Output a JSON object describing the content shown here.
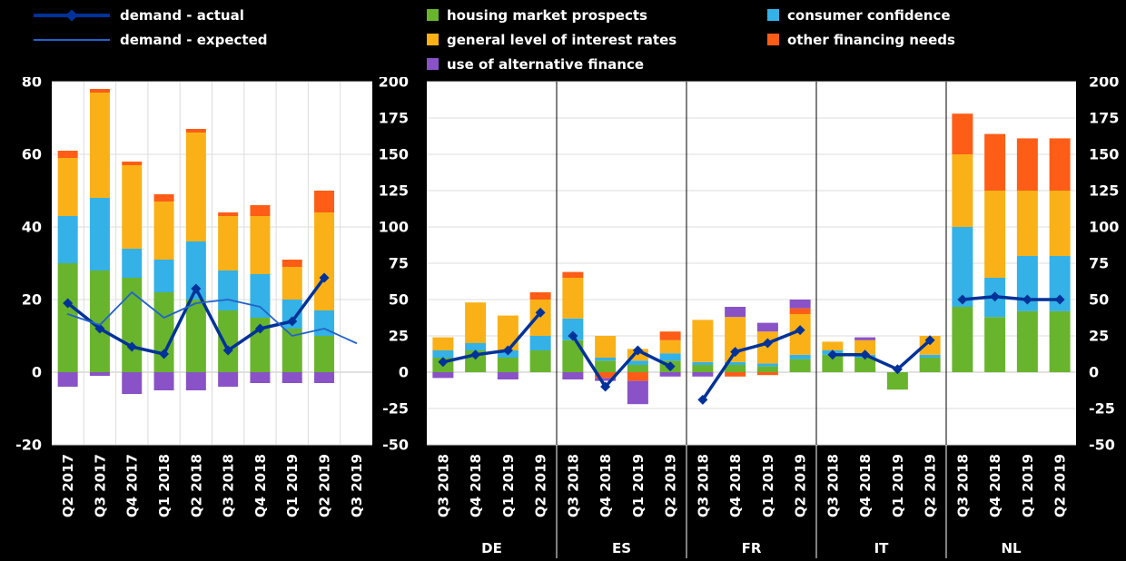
{
  "legend": {
    "lines": [
      {
        "label": "demand - actual",
        "color": "#003299"
      },
      {
        "label": "demand - expected",
        "color": "#2163cb"
      }
    ],
    "bars": [
      {
        "label": "housing market prospects",
        "color": "#69b42d"
      },
      {
        "label": "consumer confidence",
        "color": "#34b1e6"
      },
      {
        "label": "general level of interest rates",
        "color": "#f9b117"
      },
      {
        "label": "other financing needs",
        "color": "#fd5d17"
      },
      {
        "label": "use of alternative finance",
        "color": "#8a52c7"
      }
    ]
  },
  "chart_data": [
    {
      "id": "euro-area",
      "type": "bar",
      "subtype": "stacked-bars-with-lines",
      "title": "",
      "xlabel": "",
      "ylabel": "",
      "ylim": [
        -20,
        80
      ],
      "yticks": [
        80,
        60,
        40,
        20,
        0,
        -20
      ],
      "grid": true,
      "legend_position": "top",
      "categories": [
        "Q2 2017",
        "Q3 2017",
        "Q4 2017",
        "Q1 2018",
        "Q2 2018",
        "Q3 2018",
        "Q4 2018",
        "Q1 2019",
        "Q2 2019",
        "Q3 2019"
      ],
      "bar_series": [
        {
          "name": "housing market prospects",
          "color": "#69b42d",
          "values": [
            30,
            28,
            26,
            22,
            20,
            17,
            15,
            12,
            10,
            null
          ]
        },
        {
          "name": "consumer confidence",
          "color": "#34b1e6",
          "values": [
            13,
            20,
            8,
            9,
            16,
            11,
            12,
            8,
            7,
            null
          ]
        },
        {
          "name": "general level of interest rates",
          "color": "#f9b117",
          "values": [
            16,
            29,
            23,
            16,
            30,
            15,
            16,
            9,
            27,
            null
          ]
        },
        {
          "name": "other financing needs",
          "color": "#fd5d17",
          "values": [
            2,
            1,
            1,
            2,
            1,
            1,
            3,
            2,
            6,
            null
          ]
        },
        {
          "name": "use of alternative finance",
          "color": "#8a52c7",
          "values": [
            -4,
            -1,
            -6,
            -5,
            -5,
            -4,
            -3,
            -3,
            -3,
            null
          ]
        }
      ],
      "line_series": [
        {
          "name": "demand - actual",
          "color": "#003299",
          "width": 3.5,
          "marker": "diamond",
          "values": [
            19,
            12,
            7,
            5,
            23,
            6,
            12,
            14,
            26,
            null
          ]
        },
        {
          "name": "demand - expected",
          "color": "#2163cb",
          "width": 1.8,
          "marker": "none",
          "values": [
            16,
            13,
            22,
            15,
            19,
            20,
            18,
            10,
            12,
            8
          ]
        }
      ]
    },
    {
      "id": "countries",
      "type": "bar",
      "subtype": "stacked-bars-with-lines-grouped",
      "title": "",
      "xlabel": "",
      "ylabel": "",
      "ylim": [
        -50,
        200
      ],
      "yticks": [
        200,
        175,
        150,
        125,
        100,
        75,
        50,
        25,
        0,
        -25,
        -50
      ],
      "grid": true,
      "legend_position": "top",
      "groups": [
        "DE",
        "ES",
        "FR",
        "IT",
        "NL"
      ],
      "group_categories": [
        "Q3 2018",
        "Q4 2018",
        "Q1 2019",
        "Q2 2019"
      ],
      "bar_series": [
        {
          "name": "housing market prospects",
          "color": "#69b42d",
          "values": [
            [
              10,
              15,
              10,
              15
            ],
            [
              22,
              8,
              5,
              8
            ],
            [
              5,
              5,
              4,
              9
            ],
            [
              12,
              10,
              -12,
              10
            ],
            [
              45,
              38,
              42,
              42
            ]
          ]
        },
        {
          "name": "consumer confidence",
          "color": "#34b1e6",
          "values": [
            [
              5,
              5,
              5,
              10
            ],
            [
              15,
              2,
              3,
              5
            ],
            [
              2,
              2,
              2,
              3
            ],
            [
              3,
              2,
              0,
              2
            ],
            [
              55,
              27,
              38,
              38
            ]
          ]
        },
        {
          "name": "general level of interest rates",
          "color": "#f9b117",
          "values": [
            [
              9,
              28,
              24,
              25
            ],
            [
              28,
              15,
              8,
              9
            ],
            [
              29,
              31,
              22,
              28
            ],
            [
              6,
              10,
              0,
              13
            ],
            [
              50,
              60,
              45,
              45
            ]
          ]
        },
        {
          "name": "other financing needs",
          "color": "#fd5d17",
          "values": [
            [
              0,
              0,
              0,
              5
            ],
            [
              4,
              -4,
              -6,
              6
            ],
            [
              0,
              -3,
              -2,
              4
            ],
            [
              0,
              0,
              0,
              0
            ],
            [
              28,
              39,
              36,
              36
            ]
          ]
        },
        {
          "name": "use of alternative finance",
          "color": "#8a52c7",
          "values": [
            [
              -4,
              0,
              -5,
              0
            ],
            [
              -5,
              -2,
              -16,
              -3
            ],
            [
              -3,
              7,
              6,
              6
            ],
            [
              0,
              2,
              0,
              0
            ],
            [
              0,
              0,
              0,
              0
            ]
          ]
        }
      ],
      "line_series": [
        {
          "name": "demand - actual",
          "color": "#003299",
          "width": 3.5,
          "marker": "diamond",
          "values": [
            [
              7,
              12,
              15,
              41
            ],
            [
              25,
              -10,
              15,
              4
            ],
            [
              -19,
              14,
              20,
              29
            ],
            [
              12,
              12,
              2,
              22
            ],
            [
              50,
              52,
              50,
              50
            ]
          ]
        }
      ]
    }
  ]
}
